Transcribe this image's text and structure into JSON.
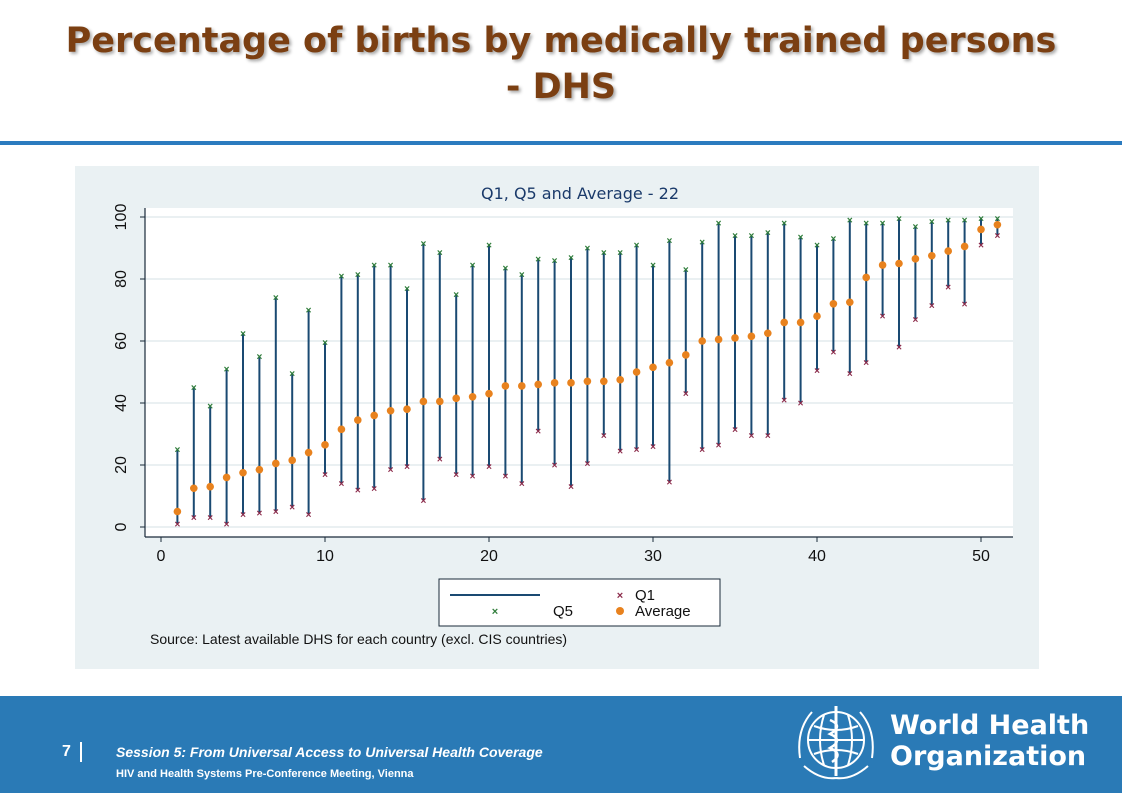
{
  "slide": {
    "title_line1": "Percentage of births by medically trained persons",
    "title_line2": "- DHS"
  },
  "footer": {
    "page_number": "7",
    "session": "Session 5: From Universal Access to Universal Health Coverage",
    "meeting": "HIV and Health Systems Pre-Conference Meeting, Vienna",
    "org_line1": "World Health",
    "org_line2": "Organization"
  },
  "colors": {
    "title": "#7b3f12",
    "rule": "#2b7bbf",
    "footer_bg": "#2a7ab6",
    "panel_bg": "#eaf1f3",
    "range_line": "#1a4a72",
    "q1_marker": "#8b2a4a",
    "q5_marker": "#2f7d3a",
    "average_marker": "#e8821e"
  },
  "chart_data": {
    "type": "scatter",
    "title": "Q1, Q5 and Average - 22",
    "xlabel": "",
    "ylabel": "",
    "xlim": [
      0,
      52
    ],
    "ylim": [
      0,
      100
    ],
    "xticks": [
      0,
      10,
      20,
      30,
      40,
      50
    ],
    "yticks": [
      0,
      20,
      40,
      60,
      80,
      100
    ],
    "grid": "horizontal",
    "legend": {
      "position": "bottom",
      "entries": [
        "",
        "Q1",
        "Q5",
        "Average"
      ]
    },
    "note": "Source: Latest available DHS for each country (excl. CIS countries)",
    "x": [
      1,
      2,
      3,
      4,
      5,
      6,
      7,
      8,
      9,
      10,
      11,
      12,
      13,
      14,
      15,
      16,
      17,
      18,
      19,
      20,
      21,
      22,
      23,
      24,
      25,
      26,
      27,
      28,
      29,
      30,
      31,
      32,
      33,
      34,
      35,
      36,
      37,
      38,
      39,
      40,
      41,
      42,
      43,
      44,
      45,
      46,
      47,
      48,
      49,
      50,
      51
    ],
    "series": [
      {
        "name": "Q1",
        "values": [
          1,
          3,
          3,
          1,
          4,
          4.5,
          5,
          6.5,
          4,
          17,
          14,
          12,
          12.5,
          18.5,
          19.5,
          8.5,
          22,
          17,
          16.5,
          19.5,
          16.5,
          14,
          31,
          20,
          13,
          20.5,
          29.5,
          24.5,
          25,
          26,
          14.5,
          43,
          25,
          26.5,
          31.5,
          29.5,
          29.5,
          41,
          40,
          50.5,
          56.5,
          49.5,
          53,
          68,
          58,
          67,
          71.5,
          77.5,
          72,
          91,
          94
        ]
      },
      {
        "name": "Q5",
        "values": [
          25,
          45,
          39,
          51,
          62.5,
          55,
          74,
          49.5,
          70,
          59.5,
          81,
          81.5,
          84.5,
          84.5,
          77,
          91.5,
          88.5,
          75,
          84.5,
          91,
          83.5,
          81.5,
          86.5,
          86,
          87,
          90,
          88.5,
          88.5,
          91,
          84.5,
          92.5,
          83,
          92,
          98,
          94,
          94,
          95,
          98,
          93.5,
          91,
          93,
          99,
          98,
          98,
          99.5,
          97,
          98.5,
          99,
          99,
          99.5,
          99.5
        ]
      },
      {
        "name": "Average",
        "values": [
          5,
          12.5,
          13,
          16,
          17.5,
          18.5,
          20.5,
          21.5,
          24,
          26.5,
          31.5,
          34.5,
          36,
          37.5,
          38,
          40.5,
          40.5,
          41.5,
          42,
          43,
          45.5,
          45.5,
          46,
          46.5,
          46.5,
          47,
          47,
          47.5,
          50,
          51.5,
          53,
          55.5,
          60,
          60.5,
          61,
          61.5,
          62.5,
          66,
          66,
          68,
          72,
          72.5,
          80.5,
          84.5,
          85,
          86.5,
          87.5,
          89,
          90.5,
          96,
          97.5
        ]
      }
    ]
  }
}
